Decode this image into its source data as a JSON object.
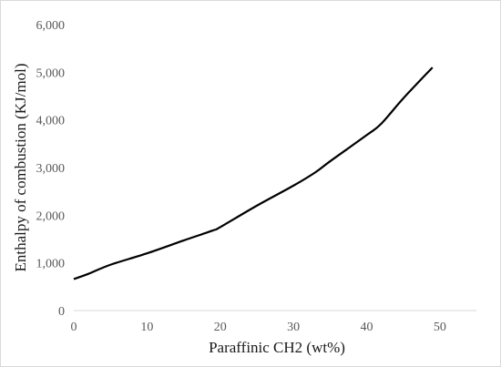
{
  "chart_data": {
    "type": "line",
    "xlabel": "Paraffinic CH2 (wt%)",
    "ylabel": "Enthalpy  of combustion (KJ/mol)",
    "xlim": [
      0,
      55
    ],
    "ylim": [
      0,
      6000
    ],
    "x_ticks": [
      "0",
      "10",
      "20",
      "30",
      "40",
      "50"
    ],
    "y_ticks": [
      "0",
      "1,000",
      "2,000",
      "3,000",
      "4,000",
      "5,000",
      "6,000"
    ],
    "grid": false,
    "legend": "none",
    "series": [
      {
        "x": [
          0,
          2,
          5,
          10,
          15,
          19,
          20,
          25,
          30,
          33,
          35,
          40,
          42,
          45,
          49
        ],
        "values": [
          660,
          770,
          960,
          1200,
          1470,
          1680,
          1750,
          2200,
          2620,
          2900,
          3130,
          3680,
          3920,
          4450,
          5100
        ]
      }
    ],
    "line_color": "#000000"
  }
}
